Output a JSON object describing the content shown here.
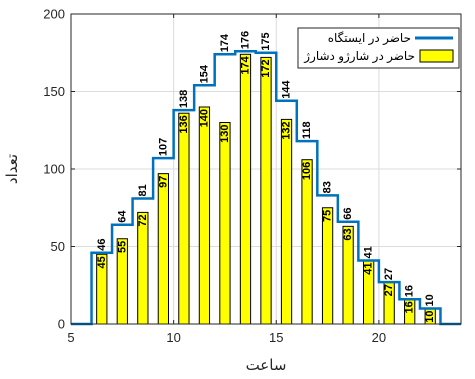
{
  "chart_data": {
    "type": "bar",
    "xlabel": "ساعت",
    "ylabel": "تعداد",
    "xlim": [
      5,
      24
    ],
    "ylim": [
      0,
      200
    ],
    "xticks": [
      5,
      10,
      15,
      20
    ],
    "yticks": [
      0,
      50,
      100,
      150,
      200
    ],
    "grid": true,
    "legend_position": "top-right",
    "x": [
      6,
      7,
      8,
      9,
      10,
      11,
      12,
      13,
      14,
      15,
      16,
      17,
      18,
      19,
      20,
      21,
      22
    ],
    "series": [
      {
        "name": "حاضر در ایستگاه",
        "type": "stairs",
        "color": "#0072BD",
        "values": [
          46,
          64,
          81,
          107,
          138,
          154,
          174,
          176,
          175,
          144,
          118,
          83,
          66,
          41,
          27,
          16,
          10
        ]
      },
      {
        "name": "حاضر در شارژو دشارژ",
        "type": "bar",
        "color": "#FFFF00",
        "values": [
          45,
          55,
          72,
          97,
          136,
          140,
          130,
          174,
          172,
          132,
          106,
          75,
          63,
          41,
          27,
          16,
          10
        ]
      }
    ]
  }
}
